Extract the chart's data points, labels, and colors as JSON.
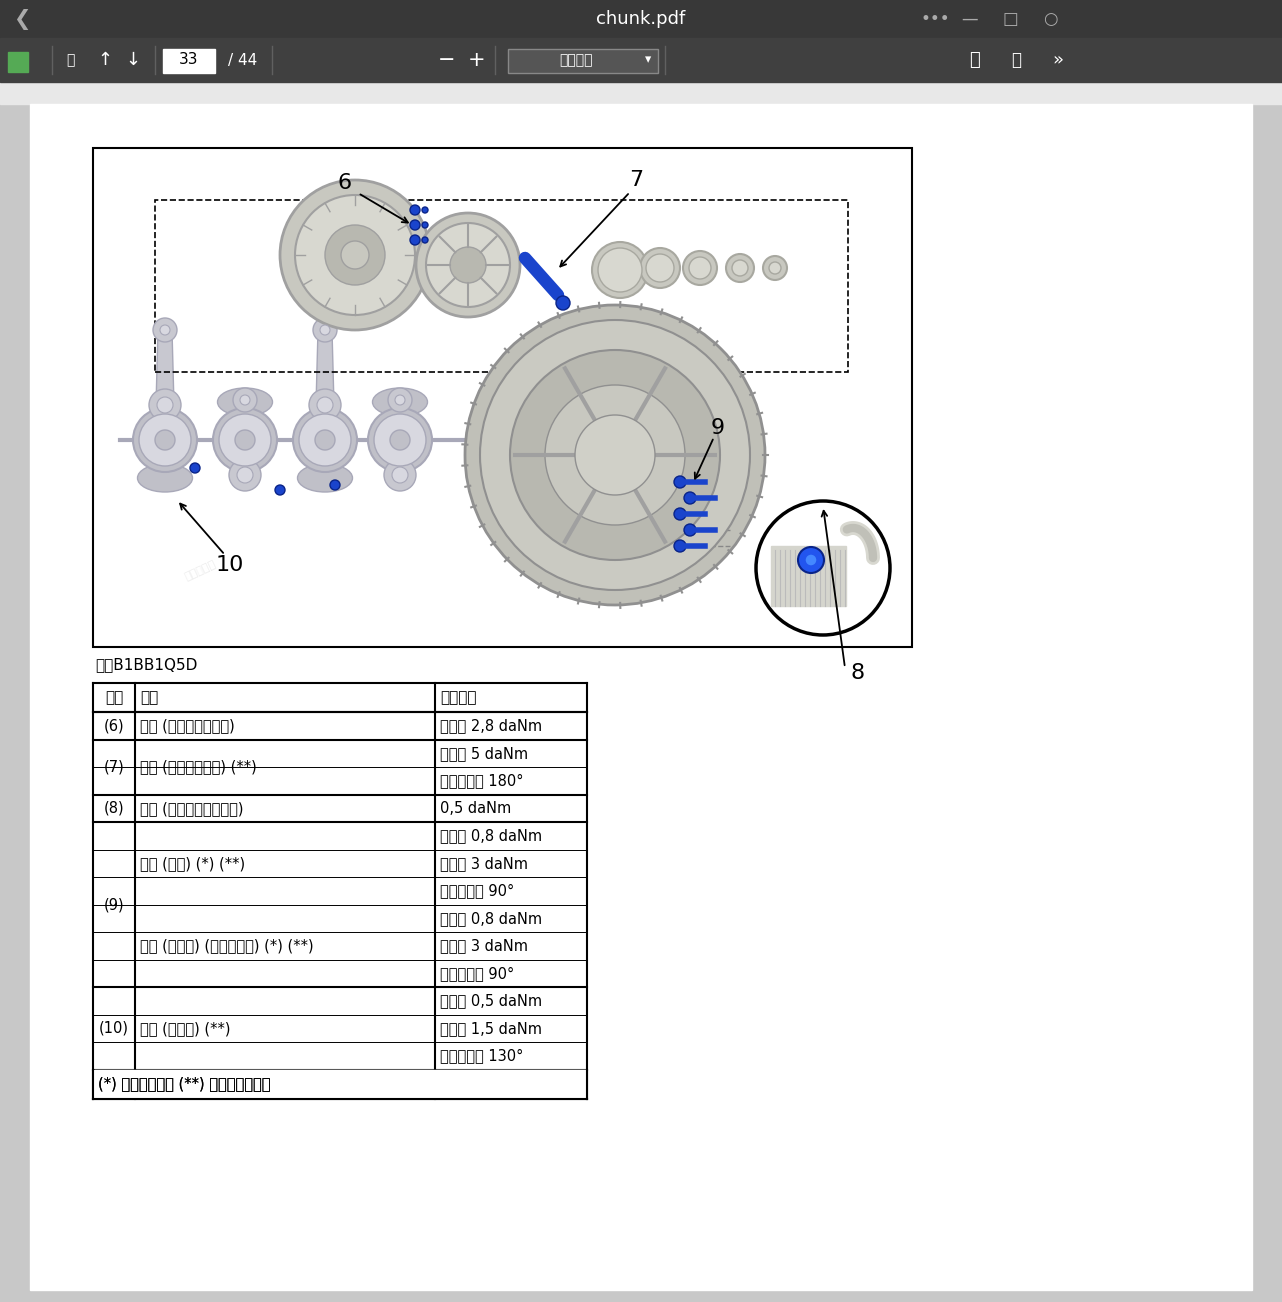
{
  "title_bar_text": "chunk.pdf",
  "page_num": "33",
  "total_pages": "44",
  "zoom_text": "自动缩放",
  "fig_label": "图：B1BB1Q5D",
  "bg_dark": "#3c3c3c",
  "toolbar_color": "#3e3e3e",
  "content_bg": "#c8c8c8",
  "page_bg": "#ffffff",
  "table_header": [
    "编号",
    "名称",
    "拧紧扈矩"
  ],
  "rows": [
    {
      "code": "(6)",
      "name": "螺栖 (附件驱动皮带轮)",
      "torque": "拧紧至 2,8 daNm",
      "thick": true,
      "cs": 1,
      "ns": 1
    },
    {
      "code": "(7)",
      "name": "螺栖 (曲轴正时齿轮) (**)",
      "torque": "预紧至 5 daNm",
      "thick": true,
      "cs": 2,
      "ns": 2
    },
    {
      "code": "",
      "name": "",
      "torque": "角度拧紧至 180°",
      "thick": false,
      "cs": 0,
      "ns": 0
    },
    {
      "code": "(8)",
      "name": "螺栖 (发动机转速传感器)",
      "torque": "0,5 daNm",
      "thick": true,
      "cs": 1,
      "ns": 1
    },
    {
      "code": "(9)",
      "name": "螺栖 (飞轮) (*) (**)",
      "torque": "预紧至 0,8 daNm",
      "thick": true,
      "cs": 6,
      "ns": 3
    },
    {
      "code": "",
      "name": "",
      "torque": "预紧至 3 daNm",
      "thick": false,
      "cs": 0,
      "ns": 0
    },
    {
      "code": "",
      "name": "",
      "torque": "角度拧紧至 90°",
      "thick": false,
      "cs": 0,
      "ns": 0
    },
    {
      "code": "",
      "name": "螺栖 (从动板) (自动变速筱) (*) (**)",
      "torque": "预紧至 0,8 daNm",
      "thick": false,
      "cs": 0,
      "ns": 3
    },
    {
      "code": "",
      "name": "",
      "torque": "预紧至 3 daNm",
      "thick": false,
      "cs": 0,
      "ns": 0
    },
    {
      "code": "",
      "name": "",
      "torque": "角度拧紧至 90°",
      "thick": false,
      "cs": 0,
      "ns": 0
    },
    {
      "code": "(10)",
      "name": "螺栖 (大端盖) (**)",
      "torque": "预紧至 0,5 daNm",
      "thick": true,
      "cs": 3,
      "ns": 3
    },
    {
      "code": "",
      "name": "",
      "torque": "预紧至 1,5 daNm",
      "thick": false,
      "cs": 0,
      "ns": 0
    },
    {
      "code": "",
      "name": "",
      "torque": "角度拧紧至 130°",
      "thick": false,
      "cs": 0,
      "ns": 0
    }
  ],
  "footer": "(*) 按照紧固顺序 (**) 拆卸后必须更新",
  "col1": 42,
  "col2": 300,
  "col3": 152
}
